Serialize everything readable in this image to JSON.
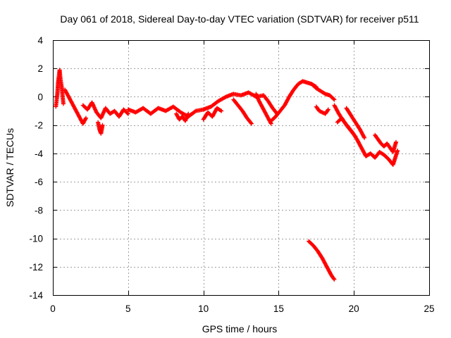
{
  "chart_data": {
    "type": "scatter",
    "title": "Day 061 of 2018, Sidereal Day-to-day VTEC variation (SDTVAR) for receiver p511",
    "xlabel": "GPS time / hours",
    "ylabel": "SDTVAR / TECUs",
    "xlim": [
      0,
      25
    ],
    "ylim": [
      -14,
      4
    ],
    "xticks": [
      0,
      5,
      10,
      15,
      20,
      25
    ],
    "yticks": [
      4,
      2,
      0,
      -2,
      -4,
      -6,
      -8,
      -10,
      -12,
      -14
    ],
    "grid": true,
    "marker": "+",
    "series": [
      {
        "name": "SDTVAR",
        "color": "#ff0000",
        "segments": [
          {
            "x": [
              0.2,
              0.3,
              0.35,
              0.45,
              0.5,
              0.6,
              0.7
            ],
            "y": [
              -0.7,
              0.2,
              1.0,
              1.9,
              1.3,
              0.6,
              -0.5
            ]
          },
          {
            "x": [
              0.8,
              1.0,
              1.2,
              1.5,
              1.8,
              2.0,
              2.2
            ],
            "y": [
              0.5,
              0.1,
              -0.3,
              -0.9,
              -1.5,
              -1.9,
              -1.5
            ]
          },
          {
            "x": [
              2.0,
              2.3,
              2.6,
              2.9,
              3.2,
              3.5,
              3.8,
              4.1,
              4.4,
              4.7,
              5.0
            ],
            "y": [
              -0.6,
              -0.9,
              -0.4,
              -1.1,
              -1.5,
              -0.8,
              -1.2,
              -1.0,
              -1.4,
              -0.9,
              -1.2
            ]
          },
          {
            "x": [
              3.0,
              3.1,
              3.2,
              3.3
            ],
            "y": [
              -1.8,
              -2.3,
              -2.6,
              -2.0
            ]
          },
          {
            "x": [
              5.0,
              5.5,
              6.0,
              6.5,
              7.0,
              7.5,
              8.0,
              8.5,
              9.0,
              9.5,
              10.0
            ],
            "y": [
              -0.9,
              -1.1,
              -0.8,
              -1.2,
              -0.8,
              -1.0,
              -0.7,
              -1.1,
              -1.4,
              -1.0,
              -0.9
            ]
          },
          {
            "x": [
              8.2,
              8.4,
              8.6,
              8.8,
              9.0
            ],
            "y": [
              -1.2,
              -1.6,
              -1.4,
              -1.7,
              -1.2
            ]
          },
          {
            "x": [
              10.0,
              10.5,
              11.0,
              11.5,
              12.0,
              12.5,
              13.0,
              13.5,
              14.0
            ],
            "y": [
              -0.9,
              -0.7,
              -0.3,
              0.0,
              0.2,
              0.1,
              0.3,
              0.0,
              0.1
            ]
          },
          {
            "x": [
              10.0,
              10.3,
              10.6,
              10.9,
              11.2
            ],
            "y": [
              -1.6,
              -1.1,
              -1.4,
              -0.8,
              -1.0
            ]
          },
          {
            "x": [
              12.0,
              12.3,
              12.6,
              12.9,
              13.2
            ],
            "y": [
              -0.2,
              -0.6,
              -1.0,
              -1.5,
              -1.9
            ]
          },
          {
            "x": [
              13.5,
              13.7,
              13.9,
              14.1,
              14.3,
              14.5
            ],
            "y": [
              0.2,
              -0.3,
              -0.7,
              -1.1,
              -1.5,
              -1.9
            ]
          },
          {
            "x": [
              14.0,
              14.3,
              14.6,
              14.9
            ],
            "y": [
              0.1,
              -0.3,
              -0.8,
              -1.2
            ]
          },
          {
            "x": [
              14.5,
              14.8,
              15.1,
              15.4,
              15.7,
              16.0,
              16.3,
              16.6,
              16.9,
              17.2,
              17.5
            ],
            "y": [
              -1.7,
              -1.4,
              -1.0,
              -0.6,
              0.0,
              0.5,
              0.9,
              1.1,
              1.0,
              0.9,
              0.7
            ]
          },
          {
            "x": [
              17.2,
              17.5,
              17.8,
              18.1,
              18.4,
              18.7
            ],
            "y": [
              0.9,
              0.6,
              0.4,
              0.2,
              0.1,
              -0.2
            ]
          },
          {
            "x": [
              17.5,
              17.7,
              17.9,
              18.1,
              18.3
            ],
            "y": [
              -0.7,
              -1.0,
              -1.1,
              -1.2,
              -0.9
            ]
          },
          {
            "x": [
              18.7,
              19.0,
              19.3,
              19.6,
              19.9,
              20.2,
              20.5,
              20.8,
              21.1,
              21.4,
              21.7,
              22.0,
              22.3,
              22.6,
              22.9
            ],
            "y": [
              -0.6,
              -1.2,
              -1.7,
              -2.1,
              -2.5,
              -3.0,
              -3.6,
              -4.2,
              -4.0,
              -4.3,
              -3.9,
              -4.1,
              -4.4,
              -4.8,
              -3.8
            ]
          },
          {
            "x": [
              18.9,
              19.2,
              19.5,
              19.8,
              20.1
            ],
            "y": [
              -1.8,
              -1.5,
              -2.0,
              -2.4,
              -2.8
            ]
          },
          {
            "x": [
              19.5,
              19.8,
              20.1,
              20.4,
              20.7
            ],
            "y": [
              -0.8,
              -1.3,
              -1.8,
              -2.3,
              -2.9
            ]
          },
          {
            "x": [
              21.4,
              21.6,
              21.8,
              22.0,
              22.2,
              22.4,
              22.6,
              22.8
            ],
            "y": [
              -2.7,
              -3.0,
              -3.3,
              -3.5,
              -3.3,
              -3.6,
              -3.9,
              -3.2
            ]
          },
          {
            "x": [
              17.0,
              17.3,
              17.6,
              17.9,
              18.2,
              18.5,
              18.7
            ],
            "y": [
              -10.2,
              -10.5,
              -10.9,
              -11.4,
              -12.0,
              -12.6,
              -12.9
            ]
          }
        ]
      }
    ]
  }
}
